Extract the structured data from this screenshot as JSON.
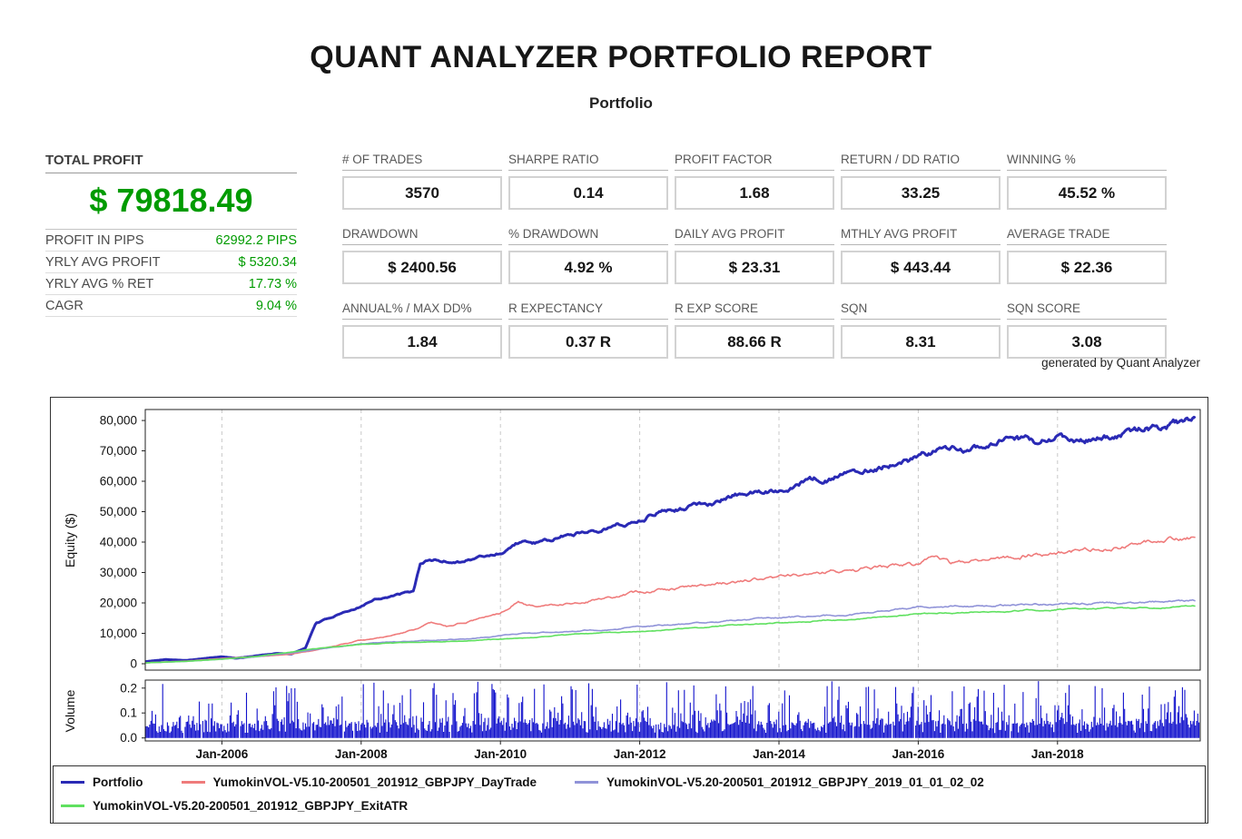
{
  "report": {
    "title": "QUANT ANALYZER PORTFOLIO REPORT",
    "subtitle": "Portfolio",
    "footnote": "generated by Quant Analyzer"
  },
  "summary": {
    "label": "TOTAL PROFIT",
    "value": "$ 79818.49",
    "rows": [
      {
        "label": "PROFIT IN PIPS",
        "value": "62992.2 PIPS"
      },
      {
        "label": "YRLY AVG PROFIT",
        "value": "$ 5320.34"
      },
      {
        "label": "YRLY AVG % RET",
        "value": "17.73 %"
      },
      {
        "label": "CAGR",
        "value": "9.04 %"
      }
    ]
  },
  "stats": [
    {
      "label": "# OF TRADES",
      "value": "3570"
    },
    {
      "label": "SHARPE RATIO",
      "value": "0.14"
    },
    {
      "label": "PROFIT FACTOR",
      "value": "1.68"
    },
    {
      "label": "RETURN / DD RATIO",
      "value": "33.25"
    },
    {
      "label": "WINNING %",
      "value": "45.52 %"
    },
    {
      "label": "DRAWDOWN",
      "value": "$ 2400.56"
    },
    {
      "label": "% DRAWDOWN",
      "value": "4.92 %"
    },
    {
      "label": "DAILY AVG PROFIT",
      "value": "$ 23.31"
    },
    {
      "label": "MTHLY AVG PROFIT",
      "value": "$ 443.44"
    },
    {
      "label": "AVERAGE TRADE",
      "value": "$ 22.36"
    },
    {
      "label": "ANNUAL% / MAX DD%",
      "value": "1.84"
    },
    {
      "label": "R EXPECTANCY",
      "value": "0.37 R"
    },
    {
      "label": "R EXP SCORE",
      "value": "88.66 R"
    },
    {
      "label": "SQN",
      "value": "8.31"
    },
    {
      "label": "SQN SCORE",
      "value": "3.08"
    }
  ],
  "colors": {
    "profit_green": "#009b00",
    "portfolio_line": "#2a2ab5",
    "daytrade_line": "#ef7b7b",
    "v520_line": "#9093d8",
    "exitatr_line": "#5fe05f",
    "volume_bar": "#1010cc"
  },
  "legend": [
    {
      "label": "Portfolio",
      "color": "#2a2ab5",
      "row": 0
    },
    {
      "label": "YumokinVOL-V5.10-200501_201912_GBPJPY_DayTrade",
      "color": "#ef7b7b",
      "row": 0
    },
    {
      "label": "YumokinVOL-V5.20-200501_201912_GBPJPY_2019_01_01_02_02",
      "color": "#9093d8",
      "row": 0
    },
    {
      "label": "YumokinVOL-V5.20-200501_201912_GBPJPY_ExitATR",
      "color": "#5fe05f",
      "row": 1
    }
  ],
  "chart_data": {
    "type": "line",
    "title": "",
    "xlabel": "",
    "ylabel": "Equity ($)",
    "volume_ylabel": "Volume",
    "x_domain": [
      2004.9,
      2020.05
    ],
    "y_domain": [
      -2100,
      83600
    ],
    "volume_domain": [
      -0.012,
      0.232
    ],
    "grid": "vertical-dashed",
    "legend_position": "bottom",
    "x_ticks": [
      {
        "v": 2006,
        "label": "Jan-2006"
      },
      {
        "v": 2008,
        "label": "Jan-2008"
      },
      {
        "v": 2010,
        "label": "Jan-2010"
      },
      {
        "v": 2012,
        "label": "Jan-2012"
      },
      {
        "v": 2014,
        "label": "Jan-2014"
      },
      {
        "v": 2016,
        "label": "Jan-2016"
      },
      {
        "v": 2018,
        "label": "Jan-2018"
      }
    ],
    "y_ticks": [
      {
        "v": 0,
        "label": "0"
      },
      {
        "v": 10000,
        "label": "10,000"
      },
      {
        "v": 20000,
        "label": "20,000"
      },
      {
        "v": 30000,
        "label": "30,000"
      },
      {
        "v": 40000,
        "label": "40,000"
      },
      {
        "v": 50000,
        "label": "50,000"
      },
      {
        "v": 60000,
        "label": "60,000"
      },
      {
        "v": 70000,
        "label": "70,000"
      },
      {
        "v": 80000,
        "label": "80,000"
      }
    ],
    "volume_ticks": [
      {
        "v": 0,
        "label": "0.0"
      },
      {
        "v": 0.1,
        "label": "0.1"
      },
      {
        "v": 0.2,
        "label": "0.2"
      }
    ],
    "series": [
      {
        "name": "Portfolio",
        "color": "#2a2ab5",
        "width": 3,
        "noise": 0.02,
        "seed": 101,
        "points": [
          [
            2004.9,
            700
          ],
          [
            2005.2,
            1400
          ],
          [
            2005.5,
            1100
          ],
          [
            2005.8,
            1900
          ],
          [
            2006.0,
            2300
          ],
          [
            2006.2,
            1800
          ],
          [
            2006.5,
            2600
          ],
          [
            2006.8,
            3400
          ],
          [
            2007.0,
            3200
          ],
          [
            2007.2,
            5200
          ],
          [
            2007.35,
            13500
          ],
          [
            2007.6,
            15500
          ],
          [
            2007.9,
            17500
          ],
          [
            2008.0,
            19000
          ],
          [
            2008.2,
            21500
          ],
          [
            2008.5,
            22500
          ],
          [
            2008.75,
            23500
          ],
          [
            2008.85,
            33000
          ],
          [
            2009.0,
            34000
          ],
          [
            2009.3,
            33500
          ],
          [
            2009.6,
            34500
          ],
          [
            2010.0,
            36500
          ],
          [
            2010.25,
            40000
          ],
          [
            2010.6,
            39500
          ],
          [
            2011.0,
            42500
          ],
          [
            2011.5,
            45000
          ],
          [
            2011.8,
            46000
          ],
          [
            2012.0,
            47500
          ],
          [
            2012.3,
            50500
          ],
          [
            2012.6,
            51500
          ],
          [
            2013.0,
            53000
          ],
          [
            2013.4,
            55500
          ],
          [
            2013.8,
            56500
          ],
          [
            2014.0,
            57500
          ],
          [
            2014.3,
            60000
          ],
          [
            2014.7,
            61000
          ],
          [
            2015.0,
            63000
          ],
          [
            2015.4,
            65000
          ],
          [
            2015.8,
            67000
          ],
          [
            2016.0,
            67500
          ],
          [
            2016.25,
            70000
          ],
          [
            2016.6,
            70500
          ],
          [
            2017.0,
            72000
          ],
          [
            2017.3,
            73500
          ],
          [
            2017.7,
            72800
          ],
          [
            2018.0,
            74500
          ],
          [
            2018.3,
            73400
          ],
          [
            2018.7,
            74200
          ],
          [
            2019.0,
            76000
          ],
          [
            2019.4,
            77500
          ],
          [
            2019.8,
            79000
          ],
          [
            2019.98,
            79818
          ]
        ]
      },
      {
        "name": "YumokinVOL-V5.10-200501_201912_GBPJPY_DayTrade",
        "color": "#ef7b7b",
        "width": 1.6,
        "noise": 0.025,
        "seed": 202,
        "points": [
          [
            2004.9,
            300
          ],
          [
            2005.5,
            900
          ],
          [
            2006.0,
            1700
          ],
          [
            2006.5,
            2300
          ],
          [
            2007.0,
            3200
          ],
          [
            2007.5,
            5200
          ],
          [
            2008.0,
            7600
          ],
          [
            2008.4,
            9000
          ],
          [
            2008.8,
            11500
          ],
          [
            2009.0,
            13200
          ],
          [
            2009.25,
            12200
          ],
          [
            2009.6,
            14200
          ],
          [
            2010.0,
            16800
          ],
          [
            2010.25,
            20800
          ],
          [
            2010.5,
            18600
          ],
          [
            2010.8,
            19500
          ],
          [
            2011.2,
            20500
          ],
          [
            2011.6,
            21800
          ],
          [
            2012.0,
            23600
          ],
          [
            2012.5,
            24800
          ],
          [
            2013.0,
            26000
          ],
          [
            2013.5,
            27200
          ],
          [
            2014.0,
            28600
          ],
          [
            2014.5,
            29600
          ],
          [
            2015.0,
            30800
          ],
          [
            2015.5,
            31800
          ],
          [
            2016.0,
            32600
          ],
          [
            2016.25,
            36400
          ],
          [
            2016.45,
            33400
          ],
          [
            2017.0,
            34600
          ],
          [
            2017.5,
            35600
          ],
          [
            2018.0,
            36600
          ],
          [
            2018.5,
            37600
          ],
          [
            2019.0,
            38800
          ],
          [
            2019.5,
            40200
          ],
          [
            2019.98,
            41500
          ]
        ]
      },
      {
        "name": "YumokinVOL-V5.20-200501_201912_GBPJPY_2019_01_01_02_02",
        "color": "#9093d8",
        "width": 1.6,
        "noise": 0.02,
        "seed": 303,
        "points": [
          [
            2004.9,
            300
          ],
          [
            2005.5,
            800
          ],
          [
            2006.0,
            1500
          ],
          [
            2006.5,
            2300
          ],
          [
            2007.0,
            3600
          ],
          [
            2007.4,
            4800
          ],
          [
            2008.0,
            6500
          ],
          [
            2008.5,
            7100
          ],
          [
            2009.0,
            7600
          ],
          [
            2009.5,
            8200
          ],
          [
            2010.0,
            9200
          ],
          [
            2010.4,
            10100
          ],
          [
            2011.0,
            10700
          ],
          [
            2011.5,
            11300
          ],
          [
            2012.0,
            12100
          ],
          [
            2012.5,
            12800
          ],
          [
            2013.0,
            13600
          ],
          [
            2013.5,
            14300
          ],
          [
            2014.0,
            15100
          ],
          [
            2014.5,
            15600
          ],
          [
            2015.0,
            16200
          ],
          [
            2015.5,
            17100
          ],
          [
            2016.0,
            18600
          ],
          [
            2016.5,
            19000
          ],
          [
            2017.0,
            19000
          ],
          [
            2017.5,
            19400
          ],
          [
            2018.0,
            19500
          ],
          [
            2018.5,
            19900
          ],
          [
            2019.0,
            20000
          ],
          [
            2019.5,
            20400
          ],
          [
            2019.98,
            20900
          ]
        ]
      },
      {
        "name": "YumokinVOL-V5.20-200501_201912_GBPJPY_ExitATR",
        "color": "#5fe05f",
        "width": 1.6,
        "noise": 0.015,
        "seed": 404,
        "points": [
          [
            2004.9,
            300
          ],
          [
            2005.5,
            800
          ],
          [
            2006.0,
            1500
          ],
          [
            2006.5,
            2400
          ],
          [
            2007.0,
            3900
          ],
          [
            2007.4,
            5100
          ],
          [
            2008.0,
            6300
          ],
          [
            2008.5,
            6800
          ],
          [
            2009.0,
            7100
          ],
          [
            2009.5,
            7500
          ],
          [
            2010.0,
            8100
          ],
          [
            2010.5,
            8700
          ],
          [
            2011.0,
            9600
          ],
          [
            2011.5,
            10100
          ],
          [
            2012.0,
            10600
          ],
          [
            2012.5,
            11300
          ],
          [
            2013.0,
            12100
          ],
          [
            2013.5,
            12800
          ],
          [
            2014.0,
            13500
          ],
          [
            2014.5,
            14000
          ],
          [
            2015.0,
            14600
          ],
          [
            2015.5,
            15300
          ],
          [
            2015.85,
            16100
          ],
          [
            2016.0,
            16300
          ],
          [
            2016.5,
            16700
          ],
          [
            2017.0,
            17100
          ],
          [
            2017.5,
            17500
          ],
          [
            2018.0,
            17900
          ],
          [
            2018.5,
            18100
          ],
          [
            2019.0,
            18300
          ],
          [
            2019.5,
            18500
          ],
          [
            2019.98,
            18700
          ]
        ]
      }
    ],
    "volume": {
      "color": "#1010cc",
      "seed": 11
    }
  }
}
